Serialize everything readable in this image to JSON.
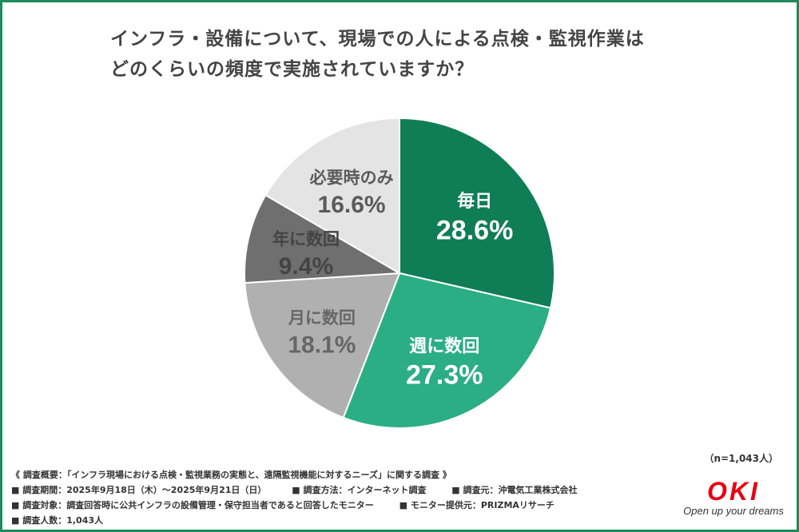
{
  "title": {
    "line1": "インフラ・設備について、現場での人による点検・監視作業は",
    "line2": "どのくらいの頻度で実施されていますか？"
  },
  "chart_data": {
    "type": "pie",
    "start": "12 o'clock, clockwise",
    "slices": [
      {
        "label": "毎日",
        "value": 28.6,
        "display": "28.6%",
        "color": "#0f7d55",
        "text_color": "#ffffff"
      },
      {
        "label": "週に数回",
        "value": 27.3,
        "display": "27.3%",
        "color": "#2bae84",
        "text_color": "#ffffff"
      },
      {
        "label": "月に数回",
        "value": 18.1,
        "display": "18.1%",
        "color": "#b0b0b0",
        "text_color": "#666666"
      },
      {
        "label": "年に数回",
        "value": 9.4,
        "display": "9.4%",
        "color": "#6f6f6f",
        "text_color": "#444444"
      },
      {
        "label": "必要時のみ",
        "value": 16.6,
        "display": "16.6%",
        "color": "#e4e4e4",
        "text_color": "#5a5a5a"
      }
    ]
  },
  "sample_size": "（n=1,043人）",
  "footer": {
    "overview": "《 調査概要：「インフラ現場における点検・監視業務の実態と、遠隔監視機能に対するニーズ」に関する調査 》",
    "period": "■ 調査期間：2025年9月18日（木）〜2025年9月21日（日）",
    "method": "■ 調査方法：インターネット調査",
    "source": "■ 調査元：沖電気工業株式会社",
    "target": "■ 調査対象：調査回答時に公共インフラの設備管理・保守担当者であると回答したモニター",
    "provider": "■ モニター提供元：PRIZMAリサーチ",
    "count": "■ 調査人数：1,043人"
  },
  "logo": {
    "word": "OKI",
    "tagline": "Open up your dreams",
    "color": "#e60012"
  }
}
